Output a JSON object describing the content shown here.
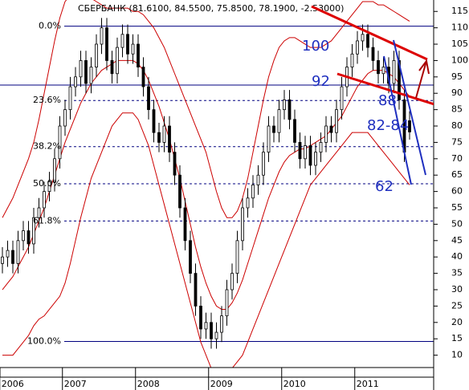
{
  "chart_data": {
    "type": "candlestick",
    "title": "СБЕРБАНК (81.6100, 84.5500, 75.8500, 78.1900, -2.53000)",
    "categories": [
      "2006",
      null,
      null,
      null,
      null,
      null,
      null,
      null,
      null,
      null,
      null,
      null,
      "2007",
      null,
      null,
      null,
      null,
      null,
      null,
      null,
      null,
      null,
      null,
      null,
      null,
      null,
      "2008",
      null,
      null,
      null,
      null,
      null,
      null,
      null,
      null,
      null,
      null,
      null,
      null,
      null,
      "2009",
      null,
      null,
      null,
      null,
      null,
      null,
      null,
      null,
      null,
      null,
      null,
      null,
      null,
      "2010",
      null,
      null,
      null,
      null,
      null,
      null,
      null,
      null,
      null,
      null,
      null,
      null,
      null,
      "2011",
      null,
      null,
      null,
      null,
      null,
      null,
      null,
      null,
      null,
      null
    ],
    "open": [
      38,
      40,
      42,
      38,
      45,
      48,
      44,
      52,
      55,
      60,
      63,
      70,
      80,
      85,
      92,
      95,
      100,
      93,
      98,
      105,
      110,
      100,
      96,
      104,
      108,
      102,
      105,
      98,
      92,
      85,
      78,
      75,
      80,
      72,
      65,
      55,
      45,
      35,
      25,
      18,
      20,
      15,
      17,
      22,
      30,
      35,
      45,
      55,
      58,
      62,
      65,
      72,
      80,
      78,
      85,
      88,
      82,
      75,
      70,
      74,
      68,
      72,
      75,
      80,
      78,
      85,
      92,
      98,
      102,
      106,
      108,
      104,
      100,
      96,
      98,
      93,
      100,
      88,
      81.61
    ],
    "high": [
      43,
      45,
      45,
      48,
      51,
      51,
      55,
      58,
      63,
      66,
      73,
      83,
      88,
      95,
      98,
      103,
      103,
      101,
      108,
      113,
      113,
      103,
      107,
      111,
      111,
      108,
      108,
      101,
      95,
      88,
      81,
      83,
      83,
      75,
      68,
      58,
      48,
      38,
      28,
      23,
      23,
      20,
      25,
      33,
      38,
      48,
      58,
      61,
      65,
      68,
      75,
      83,
      83,
      88,
      91,
      91,
      85,
      78,
      77,
      77,
      75,
      78,
      83,
      83,
      88,
      95,
      101,
      105,
      109,
      111,
      111,
      107,
      103,
      101,
      101,
      103,
      103,
      91,
      84.55
    ],
    "low": [
      35,
      37,
      35,
      35,
      42,
      41,
      41,
      49,
      52,
      57,
      60,
      67,
      77,
      82,
      89,
      92,
      90,
      90,
      95,
      102,
      97,
      93,
      93,
      101,
      99,
      99,
      95,
      89,
      82,
      75,
      72,
      72,
      69,
      62,
      52,
      42,
      32,
      22,
      15,
      15,
      12,
      12,
      14,
      19,
      27,
      32,
      42,
      52,
      55,
      59,
      62,
      69,
      75,
      75,
      82,
      79,
      72,
      67,
      67,
      65,
      65,
      69,
      72,
      75,
      75,
      82,
      89,
      95,
      99,
      103,
      101,
      97,
      93,
      93,
      90,
      90,
      85,
      69,
      75.85
    ],
    "close": [
      40,
      42,
      38,
      45,
      48,
      44,
      52,
      55,
      60,
      63,
      70,
      80,
      85,
      92,
      95,
      100,
      93,
      98,
      105,
      110,
      100,
      96,
      104,
      108,
      102,
      105,
      98,
      92,
      85,
      78,
      75,
      80,
      72,
      65,
      55,
      45,
      35,
      25,
      18,
      20,
      15,
      17,
      22,
      30,
      35,
      45,
      55,
      58,
      62,
      65,
      72,
      80,
      78,
      85,
      88,
      82,
      75,
      70,
      74,
      68,
      72,
      75,
      80,
      78,
      85,
      92,
      98,
      102,
      106,
      108,
      104,
      100,
      96,
      98,
      93,
      100,
      88,
      72,
      78.19
    ],
    "color": "#000000",
    "bands": [
      {
        "color": "#cc0000",
        "values": [
          30,
          32,
          34,
          37,
          40,
          43,
          47,
          51,
          55,
          60,
          65,
          70,
          75,
          79,
          83,
          87,
          90,
          93,
          95,
          97,
          98,
          99,
          100,
          100,
          100,
          100,
          99,
          97,
          94,
          90,
          86,
          81,
          76,
          70,
          64,
          57,
          50,
          43,
          37,
          32,
          28,
          25,
          24,
          24,
          26,
          29,
          33,
          38,
          43,
          48,
          53,
          58,
          62,
          66,
          69,
          71,
          72,
          73,
          73,
          74,
          75,
          76,
          77,
          79,
          81,
          83,
          86,
          89,
          92,
          94,
          96,
          97,
          97,
          97,
          96,
          95,
          93,
          91,
          89
        ]
      },
      {
        "color": "#cc0000",
        "values": [
          52,
          55,
          58,
          62,
          66,
          70,
          75,
          82,
          90,
          98,
          106,
          113,
          118,
          120,
          121,
          121,
          120,
          119,
          118,
          117,
          116,
          116,
          116,
          116,
          116,
          115,
          115,
          114,
          112,
          110,
          107,
          104,
          100,
          96,
          92,
          88,
          84,
          80,
          76,
          72,
          66,
          60,
          55,
          52,
          52,
          54,
          58,
          64,
          72,
          80,
          88,
          95,
          100,
          104,
          106,
          107,
          107,
          106,
          105,
          104,
          104,
          104,
          105,
          106,
          108,
          110,
          112,
          114,
          116,
          118,
          118,
          118,
          117,
          117,
          116,
          115,
          114,
          113,
          112
        ]
      },
      {
        "color": "#cc0000",
        "values": [
          10,
          10,
          10,
          12,
          14,
          16,
          19,
          21,
          22,
          24,
          26,
          28,
          32,
          38,
          45,
          52,
          58,
          64,
          68,
          72,
          76,
          80,
          82,
          84,
          84,
          84,
          82,
          78,
          74,
          68,
          62,
          56,
          50,
          44,
          38,
          32,
          26,
          20,
          14,
          10,
          6,
          5,
          5,
          5,
          6,
          8,
          10,
          14,
          18,
          22,
          26,
          30,
          34,
          38,
          42,
          46,
          50,
          54,
          58,
          62,
          64,
          66,
          68,
          70,
          72,
          74,
          76,
          78,
          78,
          78,
          78,
          76,
          74,
          72,
          70,
          68,
          66,
          64,
          62
        ]
      }
    ],
    "fib_levels": [
      {
        "label": "0.0%",
        "value": 110.5,
        "dashed": false
      },
      {
        "label": "23.6%",
        "value": 87.8,
        "dashed": true
      },
      {
        "label": "38.2%",
        "value": 73.7,
        "dashed": true
      },
      {
        "label": "50.0%",
        "value": 62.35,
        "dashed": true
      },
      {
        "label": "61.8%",
        "value": 51,
        "dashed": true
      },
      {
        "label": "100.0%",
        "value": 14.2,
        "dashed": false
      }
    ],
    "fib_color": "#000080",
    "reference_line": 92.5,
    "annotations": [
      "100",
      "92",
      "88",
      "82-84",
      "62"
    ],
    "ylim": [
      5,
      118
    ],
    "yticks": [
      10,
      15,
      20,
      25,
      30,
      35,
      40,
      45,
      50,
      55,
      60,
      65,
      70,
      75,
      80,
      85,
      90,
      95,
      100,
      105,
      110,
      115
    ]
  }
}
